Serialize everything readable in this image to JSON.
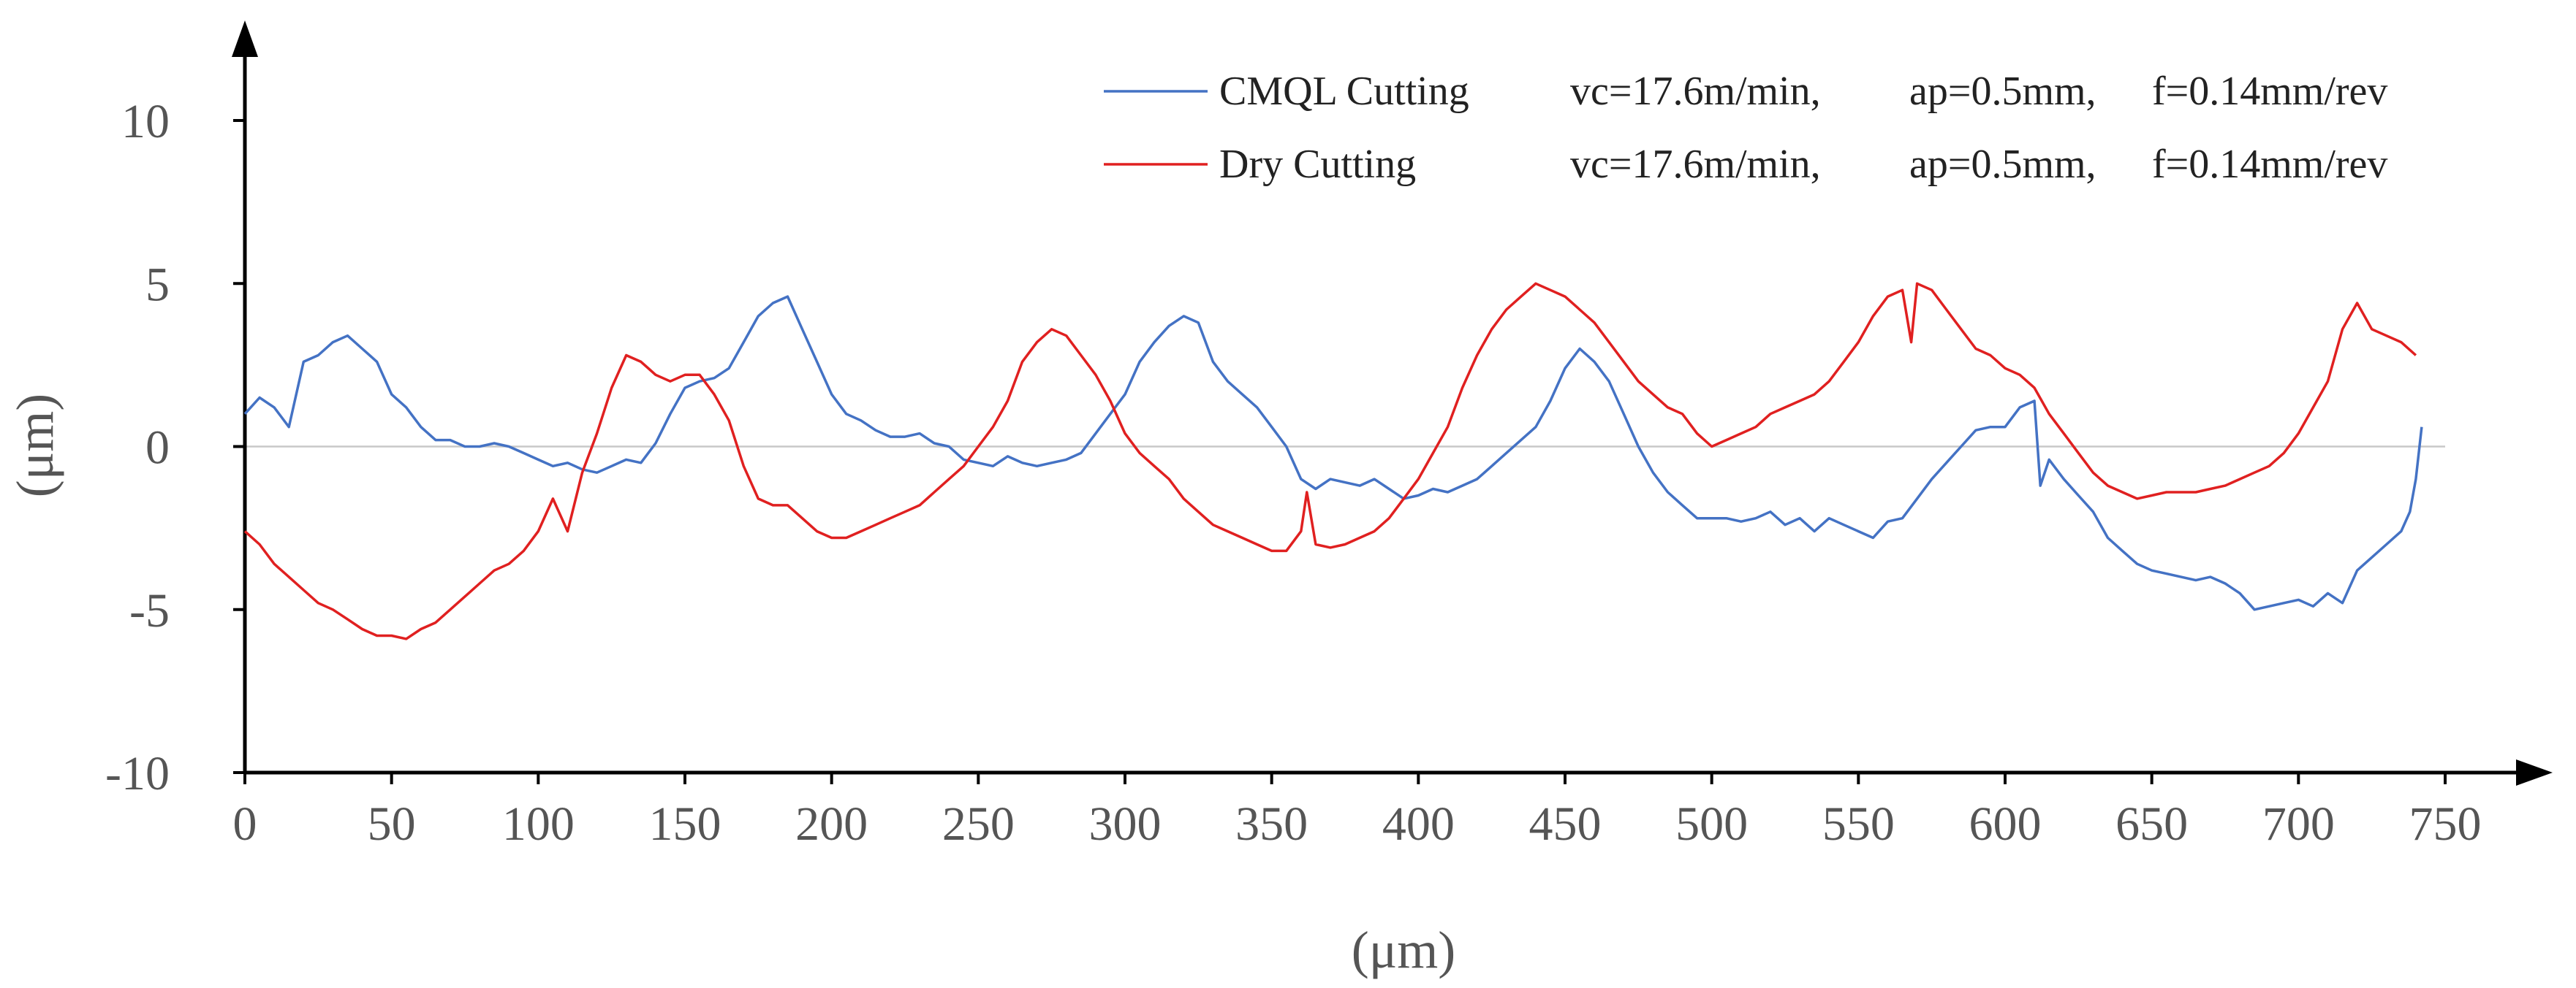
{
  "chart_data": {
    "type": "line",
    "title": "",
    "xlabel": "(μm)",
    "ylabel": "(μm)",
    "xlim": [
      0,
      750
    ],
    "ylim": [
      -10,
      10
    ],
    "x_ticks": [
      0,
      50,
      100,
      150,
      200,
      250,
      300,
      350,
      400,
      450,
      500,
      550,
      600,
      650,
      700,
      750
    ],
    "y_ticks": [
      -10,
      -5,
      0,
      5,
      10
    ],
    "zero_line": true,
    "legend_position": "top-right",
    "series": [
      {
        "name": "CMQL Cutting",
        "params": [
          "vc=17.6m/min,",
          "ap=0.5mm,",
          "f=0.14mm/rev"
        ],
        "color": "#4472c4",
        "x": [
          0,
          5,
          10,
          15,
          20,
          25,
          30,
          35,
          40,
          45,
          50,
          55,
          60,
          65,
          70,
          75,
          80,
          85,
          90,
          95,
          100,
          105,
          110,
          115,
          120,
          125,
          130,
          135,
          140,
          145,
          150,
          155,
          160,
          165,
          170,
          175,
          180,
          185,
          190,
          195,
          200,
          205,
          210,
          215,
          220,
          225,
          230,
          235,
          240,
          245,
          250,
          255,
          260,
          265,
          270,
          275,
          280,
          285,
          290,
          295,
          300,
          305,
          310,
          315,
          320,
          325,
          330,
          335,
          340,
          345,
          350,
          355,
          360,
          365,
          370,
          375,
          380,
          385,
          390,
          395,
          400,
          405,
          410,
          415,
          420,
          425,
          430,
          435,
          440,
          445,
          450,
          455,
          460,
          465,
          470,
          475,
          480,
          485,
          490,
          495,
          500,
          505,
          510,
          515,
          520,
          525,
          530,
          535,
          540,
          545,
          550,
          555,
          560,
          565,
          570,
          575,
          580,
          585,
          590,
          595,
          600,
          605,
          610,
          612,
          615,
          620,
          625,
          630,
          635,
          640,
          645,
          650,
          655,
          660,
          665,
          670,
          675,
          680,
          685,
          690,
          695,
          700,
          705,
          710,
          715,
          720,
          725,
          730,
          735,
          738,
          740,
          742
        ],
        "y": [
          1.0,
          1.5,
          1.2,
          0.6,
          2.6,
          2.8,
          3.2,
          3.4,
          3.0,
          2.6,
          1.6,
          1.2,
          0.6,
          0.2,
          0.2,
          0.0,
          0.0,
          0.1,
          0.0,
          -0.2,
          -0.4,
          -0.6,
          -0.5,
          -0.7,
          -0.8,
          -0.6,
          -0.4,
          -0.5,
          0.1,
          1.0,
          1.8,
          2.0,
          2.1,
          2.4,
          3.2,
          4.0,
          4.4,
          4.6,
          3.6,
          2.6,
          1.6,
          1.0,
          0.8,
          0.5,
          0.3,
          0.3,
          0.4,
          0.1,
          0.0,
          -0.4,
          -0.5,
          -0.6,
          -0.3,
          -0.5,
          -0.6,
          -0.5,
          -0.4,
          -0.2,
          0.4,
          1.0,
          1.6,
          2.6,
          3.2,
          3.7,
          4.0,
          3.8,
          2.6,
          2.0,
          1.6,
          1.2,
          0.6,
          0.0,
          -1.0,
          -1.3,
          -1.0,
          -1.1,
          -1.2,
          -1.0,
          -1.3,
          -1.6,
          -1.5,
          -1.3,
          -1.4,
          -1.2,
          -1.0,
          -0.6,
          -0.2,
          0.2,
          0.6,
          1.4,
          2.4,
          3.0,
          2.6,
          2.0,
          1.0,
          0.0,
          -0.8,
          -1.4,
          -1.8,
          -2.2,
          -2.2,
          -2.2,
          -2.3,
          -2.2,
          -2.0,
          -2.4,
          -2.2,
          -2.6,
          -2.2,
          -2.4,
          -2.6,
          -2.8,
          -2.3,
          -2.2,
          -1.6,
          -1.0,
          -0.5,
          0.0,
          0.5,
          0.6,
          0.6,
          1.2,
          1.4,
          -1.2,
          -0.4,
          -1.0,
          -1.5,
          -2.0,
          -2.8,
          -3.2,
          -3.6,
          -3.8,
          -3.9,
          -4.0,
          -4.1,
          -4.0,
          -4.2,
          -4.5,
          -5.0,
          -4.9,
          -4.8,
          -4.7,
          -4.9,
          -4.5,
          -4.8,
          -3.8,
          -3.4,
          -3.0,
          -2.6,
          -2.0,
          -1.0,
          0.6
        ]
      },
      {
        "name": "Dry Cutting",
        "params": [
          "vc=17.6m/min,",
          "ap=0.5mm,",
          "f=0.14mm/rev"
        ],
        "color": "#e02020",
        "x": [
          0,
          5,
          10,
          15,
          20,
          25,
          30,
          35,
          40,
          45,
          50,
          55,
          60,
          65,
          70,
          75,
          80,
          85,
          90,
          95,
          100,
          105,
          110,
          115,
          120,
          125,
          130,
          135,
          140,
          145,
          150,
          155,
          160,
          165,
          170,
          175,
          180,
          185,
          190,
          195,
          200,
          205,
          210,
          215,
          220,
          225,
          230,
          235,
          240,
          245,
          250,
          255,
          260,
          265,
          270,
          275,
          280,
          285,
          290,
          295,
          300,
          305,
          310,
          315,
          320,
          325,
          330,
          335,
          340,
          345,
          350,
          355,
          360,
          362,
          365,
          370,
          375,
          380,
          385,
          390,
          395,
          400,
          405,
          410,
          415,
          420,
          425,
          430,
          435,
          440,
          445,
          450,
          455,
          460,
          465,
          470,
          475,
          480,
          485,
          490,
          495,
          500,
          505,
          510,
          515,
          520,
          525,
          530,
          535,
          540,
          545,
          550,
          555,
          560,
          565,
          568,
          570,
          575,
          580,
          585,
          590,
          595,
          600,
          605,
          610,
          615,
          620,
          625,
          630,
          635,
          640,
          645,
          650,
          655,
          660,
          665,
          670,
          675,
          680,
          685,
          690,
          695,
          700,
          705,
          710,
          715,
          720,
          725,
          730,
          735,
          740
        ],
        "y": [
          -2.6,
          -3.0,
          -3.6,
          -4.0,
          -4.4,
          -4.8,
          -5.0,
          -5.3,
          -5.6,
          -5.8,
          -5.8,
          -5.9,
          -5.6,
          -5.4,
          -5.0,
          -4.6,
          -4.2,
          -3.8,
          -3.6,
          -3.2,
          -2.6,
          -1.6,
          -2.6,
          -0.8,
          0.4,
          1.8,
          2.8,
          2.6,
          2.2,
          2.0,
          2.2,
          2.2,
          1.6,
          0.8,
          -0.6,
          -1.6,
          -1.8,
          -1.8,
          -2.2,
          -2.6,
          -2.8,
          -2.8,
          -2.6,
          -2.4,
          -2.2,
          -2.0,
          -1.8,
          -1.4,
          -1.0,
          -0.6,
          0.0,
          0.6,
          1.4,
          2.6,
          3.2,
          3.6,
          3.4,
          2.8,
          2.2,
          1.4,
          0.4,
          -0.2,
          -0.6,
          -1.0,
          -1.6,
          -2.0,
          -2.4,
          -2.6,
          -2.8,
          -3.0,
          -3.2,
          -3.2,
          -2.6,
          -1.4,
          -3.0,
          -3.1,
          -3.0,
          -2.8,
          -2.6,
          -2.2,
          -1.6,
          -1.0,
          -0.2,
          0.6,
          1.8,
          2.8,
          3.6,
          4.2,
          4.6,
          5.0,
          4.8,
          4.6,
          4.2,
          3.8,
          3.2,
          2.6,
          2.0,
          1.6,
          1.2,
          1.0,
          0.4,
          0.0,
          0.2,
          0.4,
          0.6,
          1.0,
          1.2,
          1.4,
          1.6,
          2.0,
          2.6,
          3.2,
          4.0,
          4.6,
          4.8,
          3.2,
          5.0,
          4.8,
          4.2,
          3.6,
          3.0,
          2.8,
          2.4,
          2.2,
          1.8,
          1.0,
          0.4,
          -0.2,
          -0.8,
          -1.2,
          -1.4,
          -1.6,
          -1.5,
          -1.4,
          -1.4,
          -1.4,
          -1.3,
          -1.2,
          -1.0,
          -0.8,
          -0.6,
          -0.2,
          0.4,
          1.2,
          2.0,
          3.6,
          4.4,
          3.6,
          3.4,
          3.2,
          2.8
        ]
      }
    ]
  }
}
